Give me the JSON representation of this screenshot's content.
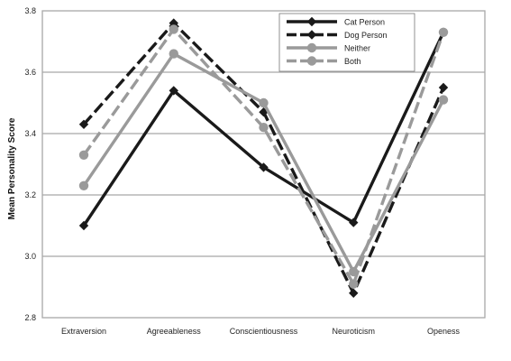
{
  "chart_data": {
    "type": "line",
    "title": "",
    "xlabel": "",
    "ylabel": "Mean Personality Score",
    "categories": [
      "Extraversion",
      "Agreeableness",
      "Conscientiousness",
      "Neuroticism",
      "Openess"
    ],
    "ylim": [
      2.8,
      3.8
    ],
    "yticks": [
      "2.8",
      "3.0",
      "3.2",
      "3.4",
      "3.6",
      "3.8"
    ],
    "grid": "horizontal",
    "legend_position": "top-right",
    "series": [
      {
        "name": "Cat Person",
        "values": [
          3.1,
          3.54,
          3.29,
          3.11,
          3.73
        ],
        "color": "#1a1a1a",
        "marker": "diamond",
        "dash": "solid"
      },
      {
        "name": "Dog Person",
        "values": [
          3.43,
          3.76,
          3.47,
          2.88,
          3.55
        ],
        "color": "#1a1a1a",
        "marker": "diamond",
        "dash": "dashed"
      },
      {
        "name": "Neither",
        "values": [
          3.23,
          3.66,
          3.5,
          2.95,
          3.51
        ],
        "color": "#9a9a9a",
        "marker": "circle",
        "dash": "solid"
      },
      {
        "name": "Both",
        "values": [
          3.33,
          3.74,
          3.42,
          2.91,
          3.73
        ],
        "color": "#9a9a9a",
        "marker": "circle",
        "dash": "dashed"
      }
    ]
  }
}
